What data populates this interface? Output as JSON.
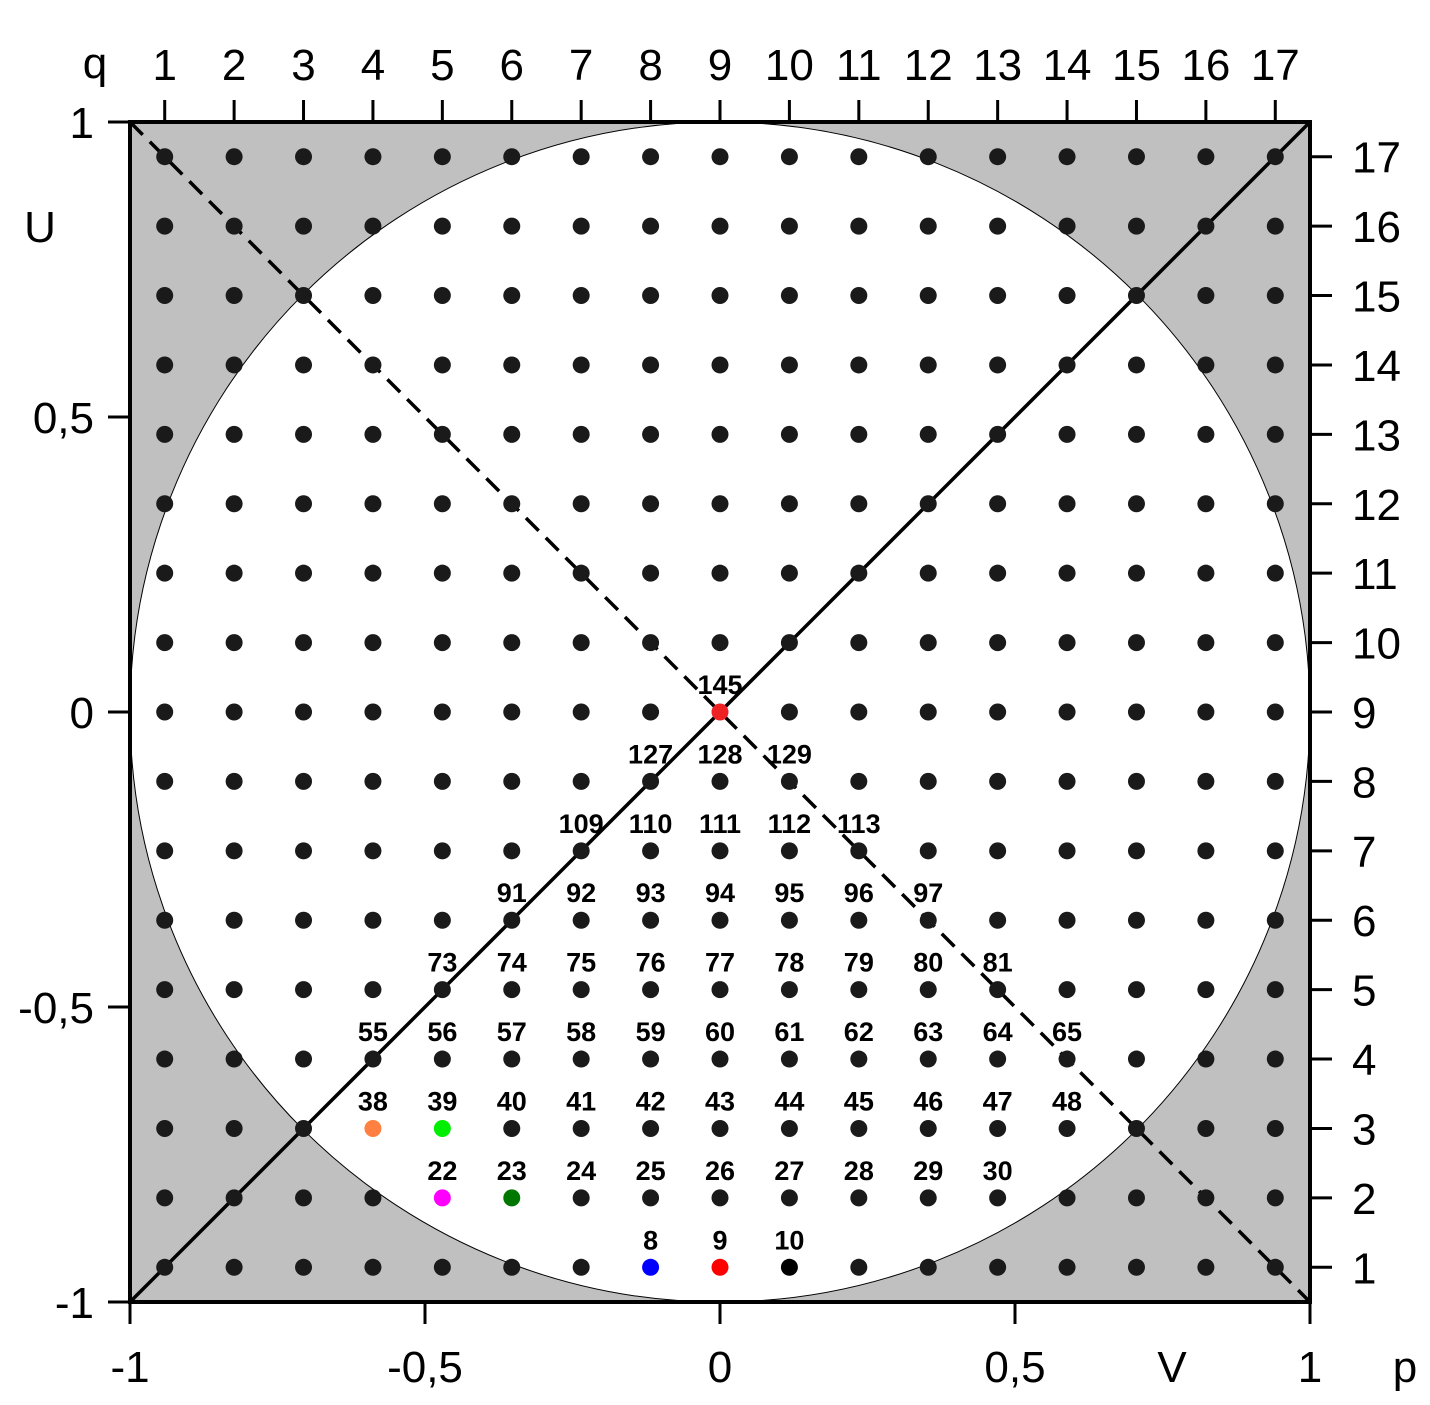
{
  "colors": {
    "shade": "#c0c0c0",
    "dot": "#1a1a1a",
    "frame": "#000000",
    "special": {
      "8": "#0000ff",
      "9": "#ff0000",
      "10": "#000000",
      "22": "#ff00ff",
      "23": "#007700",
      "38": "#ff8040",
      "39": "#00ee00",
      "145": "#ee2222"
    }
  },
  "axes": {
    "q_name": "q",
    "p_name": "p",
    "U_name": "U",
    "V_name": "V",
    "top_ticks": [
      "1",
      "2",
      "3",
      "4",
      "5",
      "6",
      "7",
      "8",
      "9",
      "10",
      "11",
      "12",
      "13",
      "14",
      "15",
      "16",
      "17"
    ],
    "right_ticks": [
      "1",
      "2",
      "3",
      "4",
      "5",
      "6",
      "7",
      "8",
      "9",
      "10",
      "11",
      "12",
      "13",
      "14",
      "15",
      "16",
      "17"
    ],
    "left_ticks": [
      {
        "value": 1,
        "label": "1"
      },
      {
        "value": 0.5,
        "label": "0,5"
      },
      {
        "value": 0,
        "label": "0"
      },
      {
        "value": -0.5,
        "label": "-0,5"
      },
      {
        "value": -1,
        "label": "-1"
      }
    ],
    "bottom_ticks": [
      {
        "value": -1,
        "label": "-1"
      },
      {
        "value": -0.5,
        "label": "-0,5"
      },
      {
        "value": 0,
        "label": "0"
      },
      {
        "value": 0.5,
        "label": "0,5"
      },
      {
        "value": 1,
        "label": "1"
      }
    ]
  },
  "grid": {
    "n": 17,
    "numbered_nodes": [
      8,
      9,
      10,
      22,
      23,
      24,
      25,
      26,
      27,
      28,
      29,
      30,
      38,
      39,
      40,
      41,
      42,
      43,
      44,
      45,
      46,
      47,
      48,
      55,
      56,
      57,
      58,
      59,
      60,
      61,
      62,
      63,
      64,
      65,
      73,
      74,
      75,
      76,
      77,
      78,
      79,
      80,
      81,
      91,
      92,
      93,
      94,
      95,
      96,
      97,
      109,
      110,
      111,
      112,
      113,
      127,
      128,
      129,
      145
    ]
  }
}
